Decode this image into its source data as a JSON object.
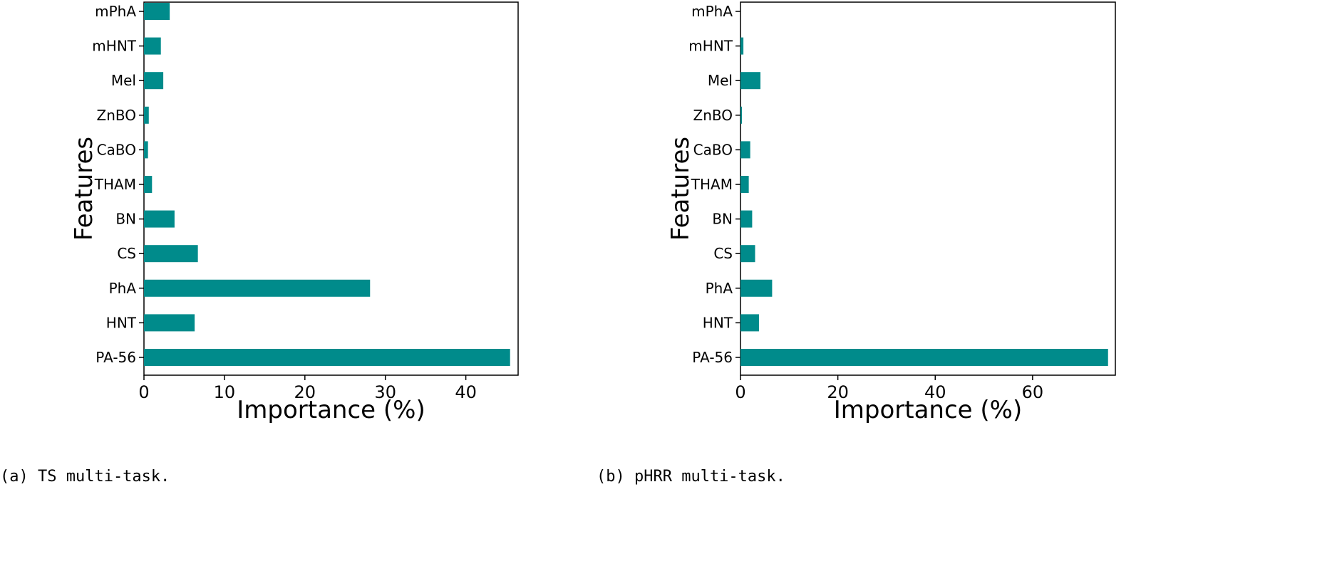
{
  "figure": {
    "bar_color": "#008b8b"
  },
  "chart_data": [
    {
      "type": "bar",
      "orientation": "horizontal",
      "caption": "(a) TS multi-task.",
      "xlabel": "Importance (%)",
      "ylabel": "Features",
      "categories": [
        "PA-56",
        "HNT",
        "PhA",
        "CS",
        "BN",
        "THAM",
        "CaBO",
        "ZnBO",
        "Mel",
        "mHNT",
        "mPhA"
      ],
      "values": [
        45.5,
        6.3,
        28.1,
        6.7,
        3.8,
        1.0,
        0.5,
        0.6,
        2.4,
        2.1,
        3.2
      ],
      "xlim": [
        0,
        46.5
      ],
      "xticks": [
        0,
        10,
        20,
        30,
        40
      ],
      "grid": false,
      "legend": "none"
    },
    {
      "type": "bar",
      "orientation": "horizontal",
      "caption": "(b) pHRR multi-task.",
      "xlabel": "Importance (%)",
      "ylabel": "Features",
      "categories": [
        "PA-56",
        "HNT",
        "PhA",
        "CS",
        "BN",
        "THAM",
        "CaBO",
        "ZnBO",
        "Mel",
        "mHNT",
        "mPhA"
      ],
      "values": [
        75.5,
        3.8,
        6.5,
        3.0,
        2.4,
        1.7,
        2.0,
        0.3,
        4.1,
        0.6,
        0.0
      ],
      "xlim": [
        0,
        77
      ],
      "xticks": [
        0,
        20,
        40,
        60
      ],
      "grid": false,
      "legend": "none"
    }
  ]
}
